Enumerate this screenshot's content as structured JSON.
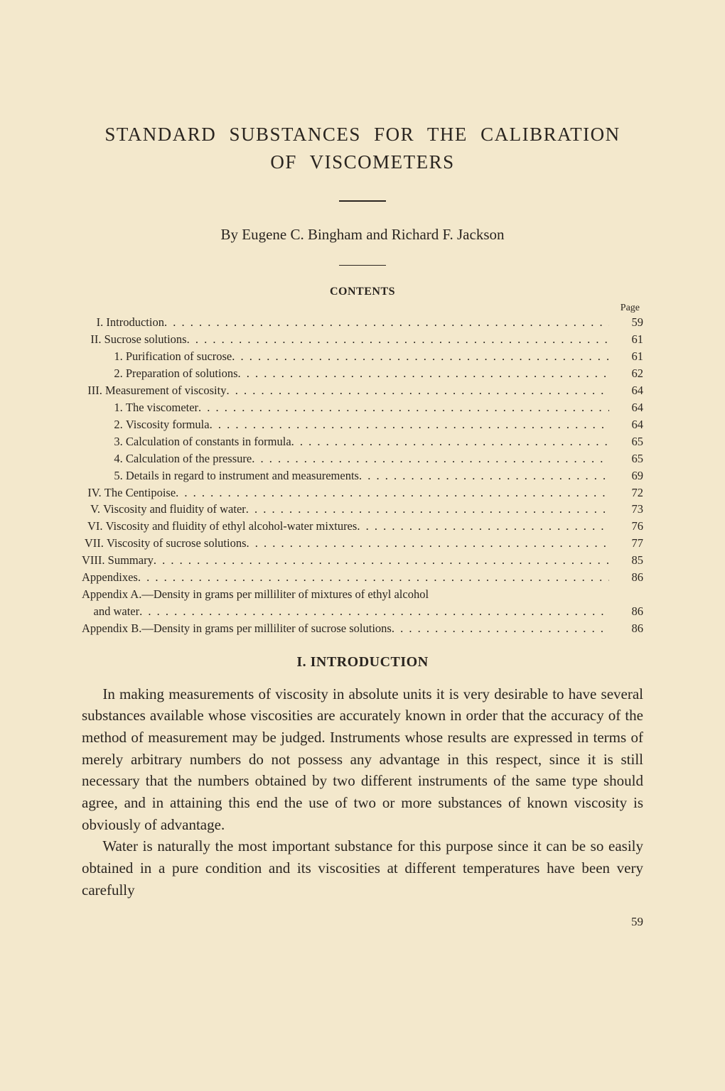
{
  "title_line1": "STANDARD  SUBSTANCES  FOR  THE  CALIBRATION",
  "title_line2": "OF VISCOMETERS",
  "byline": "By Eugene C. Bingham and Richard F. Jackson",
  "contents_heading": "CONTENTS",
  "page_label": "Page",
  "toc": [
    {
      "lead": "     I. ",
      "text": "Introduction",
      "page": "59"
    },
    {
      "lead": "   II. ",
      "text": "Sucrose solutions",
      "page": "61"
    },
    {
      "lead": "           1. ",
      "text": "Purification of sucrose",
      "page": "61"
    },
    {
      "lead": "           2. ",
      "text": "Preparation of solutions",
      "page": "62"
    },
    {
      "lead": "  III. ",
      "text": "Measurement of viscosity",
      "page": "64"
    },
    {
      "lead": "           1. ",
      "text": "The viscometer",
      "page": "64"
    },
    {
      "lead": "           2. ",
      "text": "Viscosity formula",
      "page": "64"
    },
    {
      "lead": "           3. ",
      "text": "Calculation of constants in formula",
      "page": "65"
    },
    {
      "lead": "           4. ",
      "text": "Calculation of the pressure",
      "page": "65"
    },
    {
      "lead": "           5. ",
      "text": "Details in regard to instrument and measurements",
      "page": "69"
    },
    {
      "lead": "  IV. ",
      "text": "The Centipoise",
      "page": "72"
    },
    {
      "lead": "   V. ",
      "text": "Viscosity and fluidity of water",
      "page": "73"
    },
    {
      "lead": "  VI. ",
      "text": "Viscosity and fluidity of ethyl alcohol-water mixtures",
      "page": "76"
    },
    {
      "lead": " VII. ",
      "text": "Viscosity of sucrose solutions",
      "page": "77"
    },
    {
      "lead": "VIII. ",
      "text": "Summary",
      "page": "85"
    },
    {
      "lead": "",
      "text": "Appendixes",
      "page": "86"
    }
  ],
  "appendixA_line1": "Appendix A.—Density in grams per milliliter of mixtures of ethyl alcohol",
  "appendixA_line2_lead": "    ",
  "appendixA_line2_text": "and water",
  "appendixA_page": "86",
  "appendixB_text": "Appendix B.—Density in grams per milliliter of sucrose solutions",
  "appendixB_page": "86",
  "section_heading": "I. INTRODUCTION",
  "para1": "In making measurements of viscosity in absolute units it is very desirable to have several substances available whose viscosities are accurately known in order that the accuracy of the method of measurement may be judged. Instruments whose results are expressed in terms of merely arbitrary numbers do not possess any advantage in this respect, since it is still necessary that the numbers obtained by two different instruments of the same type should agree, and in attaining this end the use of two or more substances of known viscosity is obviously of advantage.",
  "para2": "Water is naturally the most important substance for this purpose since it can be so easily obtained in a pure condition and its viscosities at different temperatures have been very carefully",
  "page_number": "59",
  "colors": {
    "background": "#f3e8cc",
    "text": "#2a2520"
  },
  "typography": {
    "title_fontsize": 27,
    "byline_fontsize": 21,
    "contents_heading_fontsize": 16,
    "toc_fontsize": 16.5,
    "section_heading_fontsize": 20,
    "body_fontsize": 21
  }
}
